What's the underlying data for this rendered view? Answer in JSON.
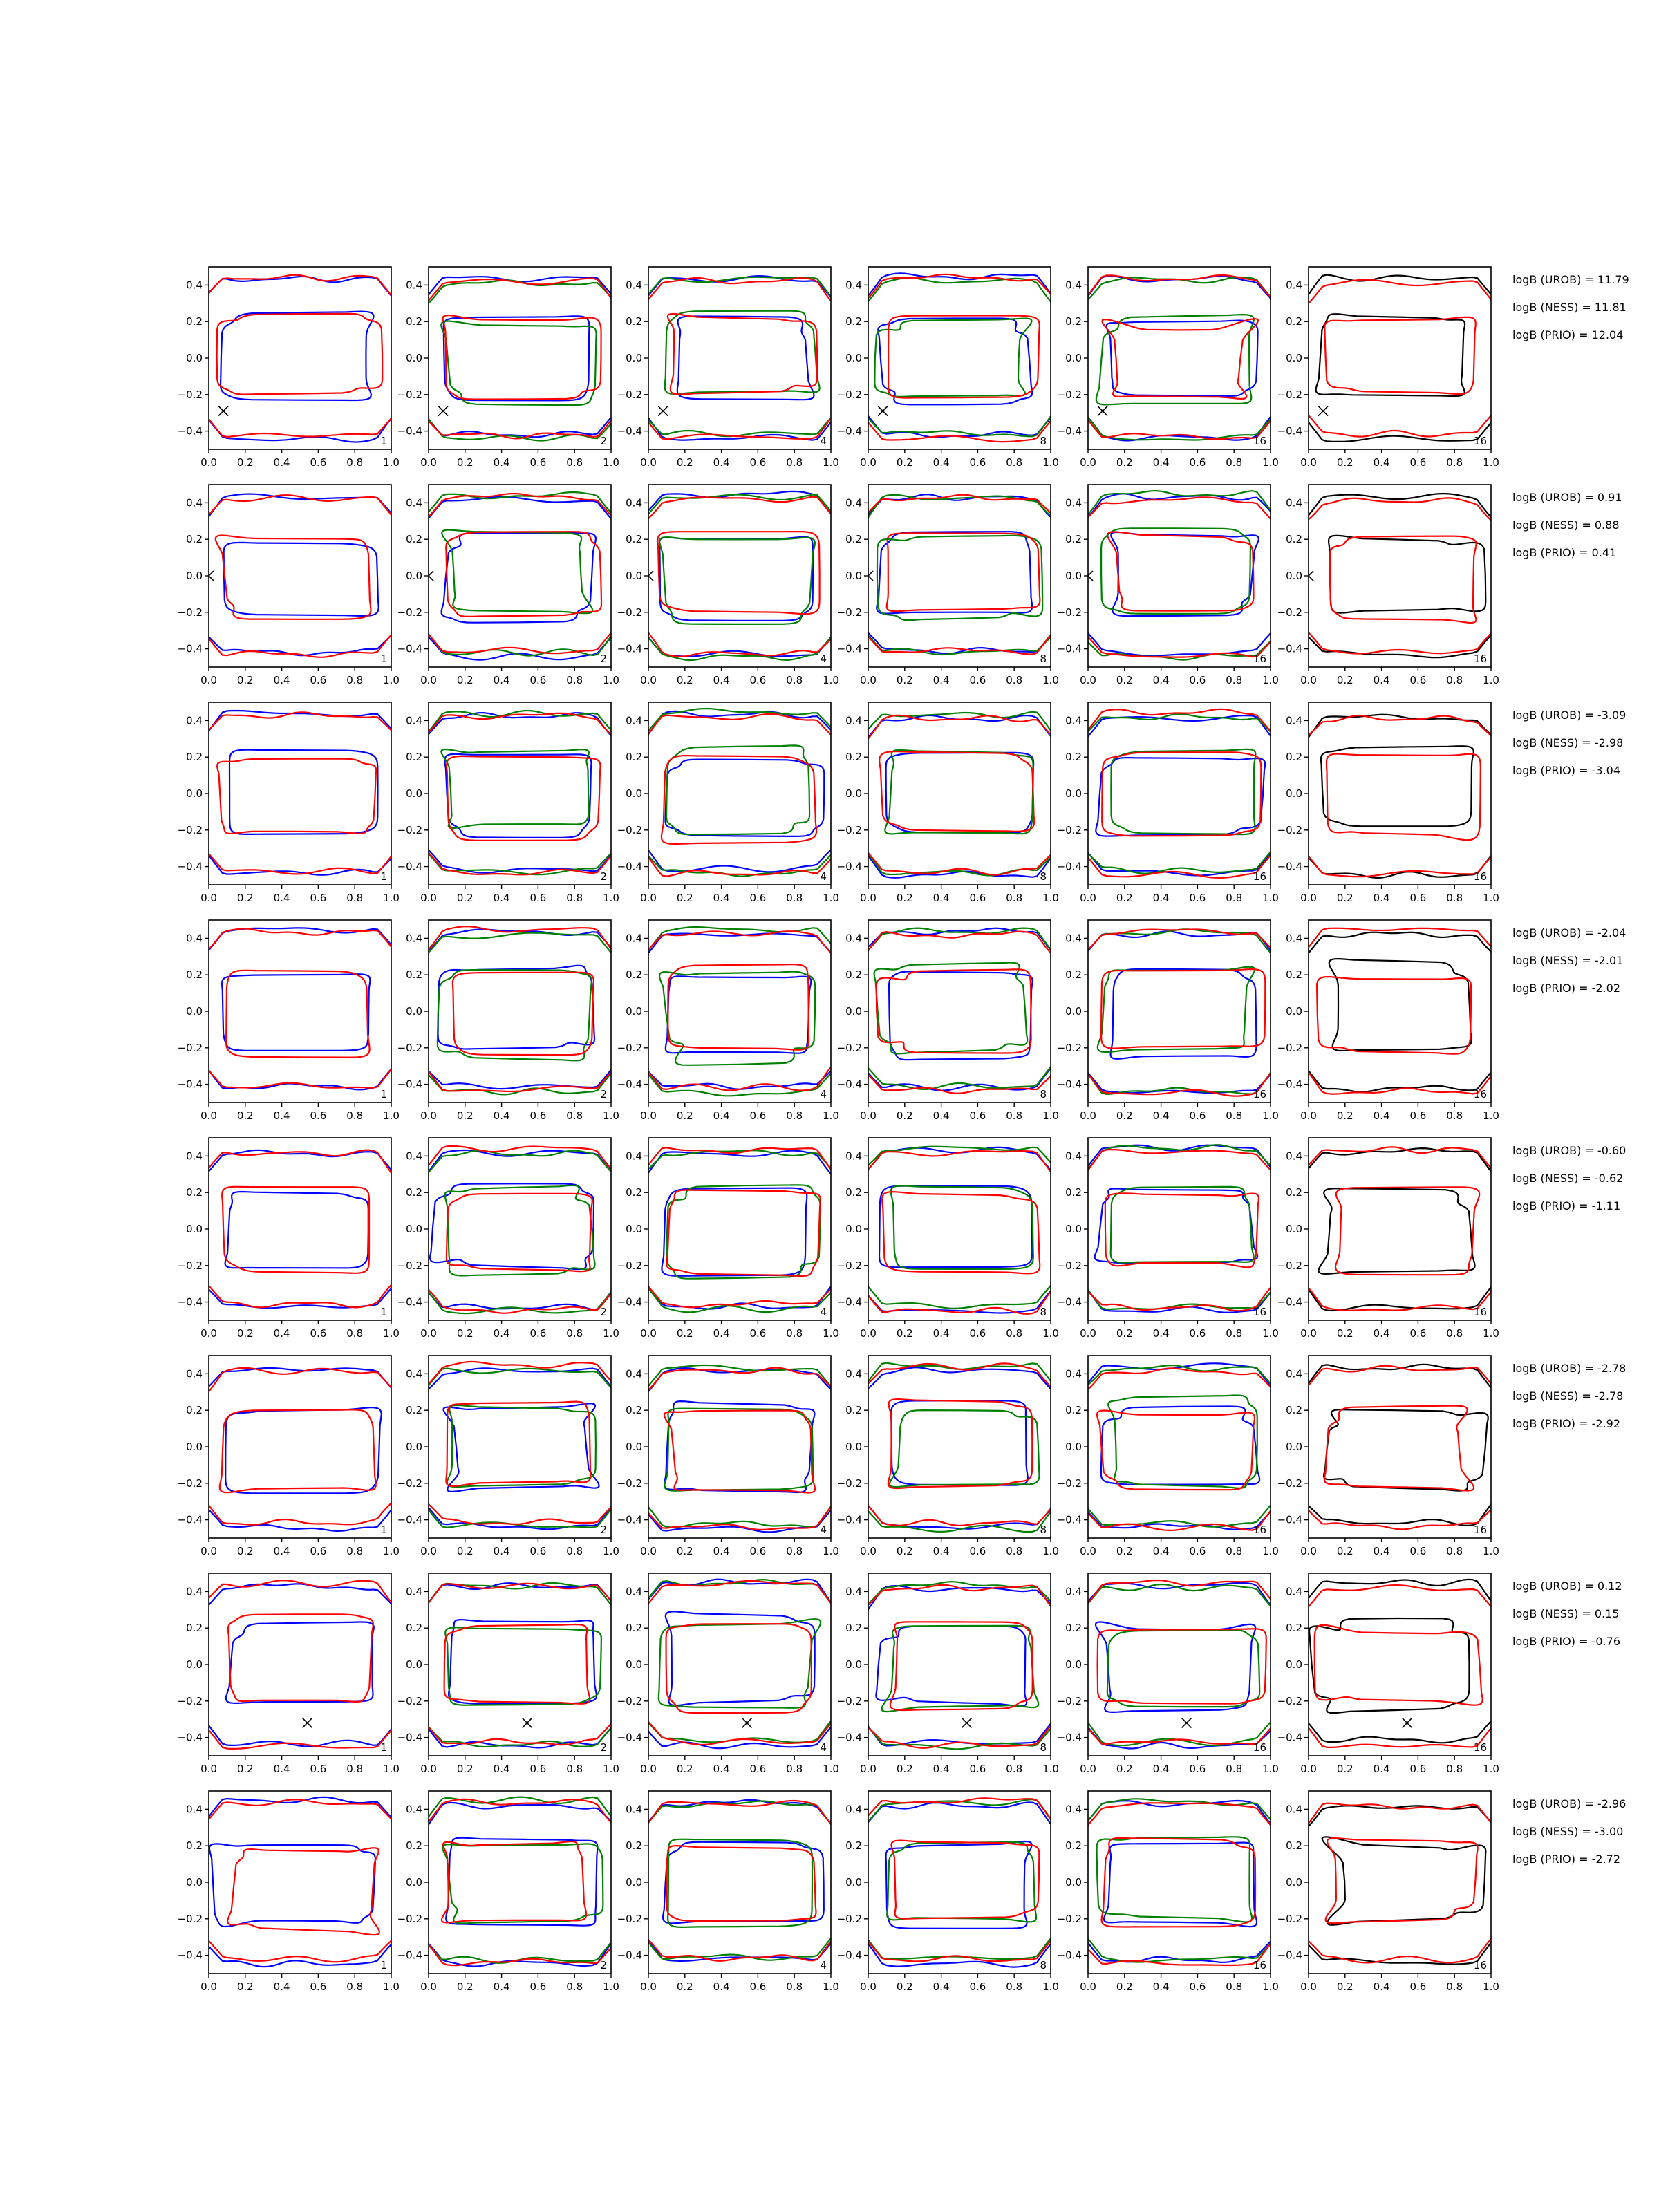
{
  "figure": {
    "type": "contour-grid",
    "n_rows": 8,
    "n_cols": 6,
    "x_ticks": [
      "0.0",
      "0.2",
      "0.4",
      "0.6",
      "0.8",
      "1.0"
    ],
    "y_ticks": [
      "0.4",
      "0.2",
      "0.0",
      "−0.2",
      "−0.4"
    ],
    "xlim": [
      0,
      1
    ],
    "ylim": [
      -0.5,
      0.5
    ],
    "column_corner_labels": [
      "1",
      "2",
      "4",
      "8",
      "16",
      "16"
    ],
    "panel_line_colors": {
      "1": [
        "#0000ff",
        "#ff0000"
      ],
      "2": [
        "#0000ff",
        "#008000",
        "#ff0000"
      ],
      "3": [
        "#0000ff",
        "#008000",
        "#ff0000"
      ],
      "4": [
        "#0000ff",
        "#008000",
        "#ff0000"
      ],
      "5": [
        "#0000ff",
        "#008000",
        "#ff0000"
      ],
      "6": [
        "#000000",
        "#ff0000"
      ]
    }
  },
  "chart_data": [
    {
      "row": 1,
      "type": "contour",
      "marker": {
        "symbol": "x",
        "x": 0.08,
        "y": -0.29
      },
      "annotations": [
        "logB (UROB) = 11.79",
        "logB (NESS) = 11.81",
        "logB (PRIO) = 12.04"
      ]
    },
    {
      "row": 2,
      "type": "contour",
      "marker": {
        "symbol": "x",
        "x": 0.0,
        "y": 0.0
      },
      "annotations": [
        "logB (UROB) = 0.91",
        "logB (NESS) = 0.88",
        "logB (PRIO) = 0.41"
      ]
    },
    {
      "row": 3,
      "type": "contour",
      "marker": null,
      "annotations": [
        "logB (UROB) = -3.09",
        "logB (NESS) = -2.98",
        "logB (PRIO) = -3.04"
      ]
    },
    {
      "row": 4,
      "type": "contour",
      "marker": null,
      "annotations": [
        "logB (UROB) = -2.04",
        "logB (NESS) = -2.01",
        "logB (PRIO) = -2.02"
      ]
    },
    {
      "row": 5,
      "type": "contour",
      "marker": null,
      "annotations": [
        "logB (UROB) = -0.60",
        "logB (NESS) = -0.62",
        "logB (PRIO) = -1.11"
      ]
    },
    {
      "row": 6,
      "type": "contour",
      "marker": null,
      "annotations": [
        "logB (UROB) = -2.78",
        "logB (NESS) = -2.78",
        "logB (PRIO) = -2.92"
      ]
    },
    {
      "row": 7,
      "type": "contour",
      "marker": {
        "symbol": "x",
        "x": 0.54,
        "y": -0.32
      },
      "annotations": [
        "logB (UROB) = 0.12",
        "logB (NESS) = 0.15",
        "logB (PRIO) = -0.76"
      ]
    },
    {
      "row": 8,
      "type": "contour",
      "marker": null,
      "annotations": [
        "logB (UROB) = -2.96",
        "logB (NESS) = -3.00",
        "logB (PRIO) = -2.72"
      ]
    }
  ]
}
